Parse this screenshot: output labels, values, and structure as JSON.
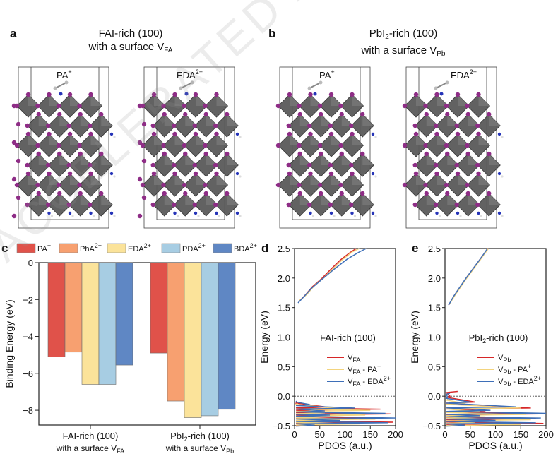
{
  "panel_a": {
    "label": "a",
    "title_line1": "FAI-rich (100)",
    "title_line2_prefix": "with a surface V",
    "title_line2_sub": "FA",
    "structures": [
      {
        "ion": "PA",
        "charge": "+"
      },
      {
        "ion": "EDA",
        "charge": "2+"
      }
    ]
  },
  "panel_b": {
    "label": "b",
    "title_line1_prefix": "PbI",
    "title_line1_sub": "2",
    "title_line1_suffix": "-rich (100)",
    "title_line2_prefix": "with a surface V",
    "title_line2_sub": "Pb",
    "structures": [
      {
        "ion": "PA",
        "charge": "+"
      },
      {
        "ion": "EDA",
        "charge": "2+"
      }
    ]
  },
  "watermark_text": "ACCELERATED ARTICLE PREVIEW",
  "colors": {
    "PA": "#e0524a",
    "PhA": "#f7a070",
    "EDA": "#fbe39a",
    "PDA": "#a7cde3",
    "BDA": "#5f87c4",
    "line_red": "#d62728",
    "line_yellow": "#f3d47e",
    "line_blue": "#3e6fb8",
    "octahedron": "#5a5a5a",
    "iodine": "#8e2d86",
    "nitrogen": "#2634b8"
  },
  "chart_data": [
    {
      "panel": "c",
      "type": "bar",
      "ylabel": "Binding Energy (eV)",
      "ylim": [
        -8.8,
        0
      ],
      "yticks": [
        "0",
        "−2",
        "−4",
        "−6",
        "−8"
      ],
      "categories": [
        {
          "line1": "FAI-rich (100)",
          "line2_prefix": "with a surface V",
          "line2_sub": "FA"
        },
        {
          "line1_prefix": "PbI",
          "line1_sub": "2",
          "line1_suffix": "-rich (100)",
          "line2_prefix": "with a surface V",
          "line2_sub": "Pb"
        }
      ],
      "legend_position": "top",
      "series": [
        {
          "name": "PA",
          "charge": "+",
          "values": [
            -5.1,
            -4.9
          ]
        },
        {
          "name": "PhA",
          "charge": "2+",
          "values": [
            -4.85,
            -7.5
          ]
        },
        {
          "name": "EDA",
          "charge": "2+",
          "values": [
            -6.6,
            -8.4
          ]
        },
        {
          "name": "PDA",
          "charge": "2+",
          "values": [
            -6.6,
            -8.3
          ]
        },
        {
          "name": "BDA",
          "charge": "2+",
          "values": [
            -5.55,
            -7.95
          ]
        }
      ]
    },
    {
      "panel": "d",
      "type": "line",
      "xlabel": "PDOS (a.u.)",
      "ylabel": "Energy (eV)",
      "xlim": [
        0,
        200
      ],
      "ylim": [
        -0.5,
        2.5
      ],
      "xticks": [
        "0",
        "50",
        "100",
        "150",
        "200"
      ],
      "yticks": [
        "−0.5",
        "0.0",
        "0.5",
        "1.0",
        "1.5",
        "2.0",
        "2.5"
      ],
      "annotation": "FAI-rich (100)",
      "reference_line_y": 0.0,
      "legend": [
        {
          "prefix": "V",
          "sub": "FA",
          "suffix": "",
          "sup": ""
        },
        {
          "prefix": "V",
          "sub": "FA",
          "suffix": " - PA",
          "sup": "+"
        },
        {
          "prefix": "V",
          "sub": "FA",
          "suffix": " - EDA",
          "sup": "2+"
        }
      ],
      "series": [
        {
          "name": "V_FA",
          "cb": [
            [
              8,
              1.6
            ],
            [
              20,
              1.7
            ],
            [
              35,
              1.85
            ],
            [
              55,
              2.0
            ],
            [
              72,
              2.15
            ],
            [
              90,
              2.3
            ],
            [
              108,
              2.42
            ],
            [
              122,
              2.5
            ]
          ],
          "vb": [
            [
              5,
              -0.1
            ],
            [
              60,
              -0.18
            ],
            [
              170,
              -0.22
            ],
            [
              40,
              -0.26
            ],
            [
              190,
              -0.3
            ],
            [
              60,
              -0.33
            ],
            [
              175,
              -0.36
            ],
            [
              80,
              -0.4
            ],
            [
              195,
              -0.44
            ],
            [
              50,
              -0.48
            ]
          ]
        },
        {
          "name": "V_FA - PA+",
          "cb": [
            [
              10,
              1.62
            ],
            [
              24,
              1.72
            ],
            [
              40,
              1.88
            ],
            [
              60,
              2.02
            ],
            [
              78,
              2.17
            ],
            [
              96,
              2.32
            ],
            [
              114,
              2.44
            ],
            [
              128,
              2.5
            ]
          ],
          "vb": [
            [
              6,
              -0.12
            ],
            [
              80,
              -0.2
            ],
            [
              150,
              -0.24
            ],
            [
              60,
              -0.28
            ],
            [
              140,
              -0.32
            ],
            [
              50,
              -0.35
            ],
            [
              160,
              -0.39
            ],
            [
              70,
              -0.43
            ],
            [
              130,
              -0.47
            ]
          ]
        },
        {
          "name": "V_FA - EDA2+",
          "cb": [
            [
              7,
              1.58
            ],
            [
              18,
              1.68
            ],
            [
              34,
              1.83
            ],
            [
              56,
              1.99
            ],
            [
              80,
              2.16
            ],
            [
              104,
              2.32
            ],
            [
              128,
              2.44
            ],
            [
              142,
              2.5
            ]
          ],
          "vb": [
            [
              4,
              -0.08
            ],
            [
              30,
              -0.14
            ],
            [
              120,
              -0.2
            ],
            [
              60,
              -0.25
            ],
            [
              180,
              -0.29
            ],
            [
              70,
              -0.32
            ],
            [
              200,
              -0.37
            ],
            [
              90,
              -0.41
            ],
            [
              185,
              -0.45
            ],
            [
              40,
              -0.49
            ]
          ]
        }
      ]
    },
    {
      "panel": "e",
      "type": "line",
      "xlabel": "PDOS (a.u.)",
      "ylabel": "Energy (eV)",
      "xlim": [
        0,
        200
      ],
      "ylim": [
        -0.5,
        2.5
      ],
      "xticks": [
        "0",
        "50",
        "100",
        "150",
        "200"
      ],
      "yticks": [
        "−0.5",
        "0.0",
        "0.5",
        "1.0",
        "1.5",
        "2.0",
        "2.5"
      ],
      "annotation_prefix": "PbI",
      "annotation_sub": "2",
      "annotation_suffix": "-rich (100)",
      "reference_line_y": 0.0,
      "legend": [
        {
          "prefix": "V",
          "sub": "Pb",
          "suffix": "",
          "sup": ""
        },
        {
          "prefix": "V",
          "sub": "Pb",
          "suffix": " - PA",
          "sup": "+"
        },
        {
          "prefix": "V",
          "sub": "Pb",
          "suffix": " - EDA",
          "sup": "2+"
        }
      ],
      "series": [
        {
          "name": "V_Pb",
          "cb": [
            [
              8,
              1.55
            ],
            [
              18,
              1.7
            ],
            [
              30,
              1.85
            ],
            [
              42,
              2.0
            ],
            [
              55,
              2.15
            ],
            [
              68,
              2.3
            ],
            [
              78,
              2.42
            ],
            [
              85,
              2.5
            ]
          ],
          "vb": [
            [
              25,
              0.08
            ],
            [
              10,
              0.0
            ],
            [
              60,
              -0.1
            ],
            [
              170,
              -0.2
            ],
            [
              80,
              -0.25
            ],
            [
              190,
              -0.3
            ],
            [
              60,
              -0.34
            ],
            [
              180,
              -0.38
            ],
            [
              90,
              -0.42
            ],
            [
              195,
              -0.46
            ]
          ]
        },
        {
          "name": "V_Pb - PA+",
          "cb": [
            [
              9,
              1.56
            ],
            [
              20,
              1.71
            ],
            [
              32,
              1.86
            ],
            [
              44,
              2.01
            ],
            [
              57,
              2.16
            ],
            [
              70,
              2.31
            ],
            [
              80,
              2.43
            ],
            [
              86,
              2.5
            ]
          ],
          "vb": [
            [
              6,
              -0.05
            ],
            [
              40,
              -0.12
            ],
            [
              150,
              -0.2
            ],
            [
              70,
              -0.26
            ],
            [
              160,
              -0.31
            ],
            [
              80,
              -0.35
            ],
            [
              170,
              -0.4
            ],
            [
              60,
              -0.44
            ],
            [
              150,
              -0.48
            ]
          ]
        },
        {
          "name": "V_Pb - EDA2+",
          "cb": [
            [
              7,
              1.54
            ],
            [
              17,
              1.69
            ],
            [
              29,
              1.84
            ],
            [
              41,
              1.99
            ],
            [
              54,
              2.14
            ],
            [
              67,
              2.29
            ],
            [
              77,
              2.41
            ],
            [
              84,
              2.5
            ]
          ],
          "vb": [
            [
              10,
              0.05
            ],
            [
              5,
              -0.02
            ],
            [
              50,
              -0.1
            ],
            [
              140,
              -0.18
            ],
            [
              90,
              -0.24
            ],
            [
              200,
              -0.29
            ],
            [
              70,
              -0.33
            ],
            [
              190,
              -0.37
            ],
            [
              100,
              -0.41
            ],
            [
              180,
              -0.45
            ],
            [
              40,
              -0.49
            ]
          ]
        }
      ]
    }
  ]
}
